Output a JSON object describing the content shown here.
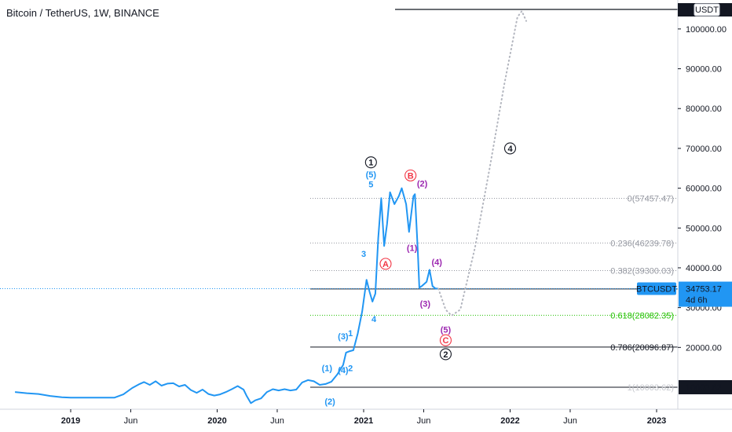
{
  "header": {
    "title": "Bitcoin / TetherUS, 1W, BINANCE"
  },
  "price_axis": {
    "unit_badge": "USDT",
    "ticks": [
      "100000.00",
      "90000.00",
      "80000.00",
      "70000.00",
      "60000.00",
      "50000.00",
      "40000.00",
      "30000.00",
      "20000.00"
    ],
    "top_label_partial": "10",
    "top_label_suffix": "2",
    "last_price": {
      "symbol": "BTCUSDT",
      "value": "34753.17",
      "countdown": "4d 6h"
    },
    "horizontal_line_label": "10003.62"
  },
  "time_axis": {
    "ticks": [
      "2019",
      "Jun",
      "2020",
      "Jun",
      "2021",
      "Jun",
      "2022",
      "Jun",
      "2023"
    ]
  },
  "fib_levels": [
    {
      "label": "0(57457.47)",
      "value": 57457.47,
      "color": "#9598a1"
    },
    {
      "label": "0.236(46239.78)",
      "value": 46239.78,
      "color": "#9598a1"
    },
    {
      "label": "0.382(39300.03)",
      "value": 39300.03,
      "color": "#9598a1"
    },
    {
      "label": "0.5",
      "value": 34678.75,
      "color": "#131722"
    },
    {
      "label": "0.618(28082.35)",
      "value": 28082.35,
      "color": "#22c000"
    },
    {
      "label": "0.786(20096.87)",
      "value": 20096.87,
      "color": "#131722"
    },
    {
      "label": "1(10003.62)",
      "value": 10003.62,
      "color": "#9598a1"
    }
  ],
  "wave_labels": [
    {
      "text": "1",
      "circled": true,
      "color": "#131722",
      "t": 2021.05,
      "v": 66500
    },
    {
      "text": "(5)",
      "circled": false,
      "color": "#2196f3",
      "t": 2021.05,
      "v": 63500
    },
    {
      "text": "5",
      "circled": false,
      "color": "#2196f3",
      "t": 2021.05,
      "v": 61000
    },
    {
      "text": "B",
      "circled": true,
      "color": "#f23645",
      "t": 2021.32,
      "v": 63200
    },
    {
      "text": "(2)",
      "circled": false,
      "color": "#9c27b0",
      "t": 2021.4,
      "v": 61200
    },
    {
      "text": "3",
      "circled": false,
      "color": "#2196f3",
      "t": 2021.0,
      "v": 43500
    },
    {
      "text": "A",
      "circled": true,
      "color": "#f23645",
      "t": 2021.15,
      "v": 41000
    },
    {
      "text": "(1)",
      "circled": false,
      "color": "#9c27b0",
      "t": 2021.33,
      "v": 45000
    },
    {
      "text": "(4)",
      "circled": false,
      "color": "#9c27b0",
      "t": 2021.5,
      "v": 41500
    },
    {
      "text": "(3)",
      "circled": false,
      "color": "#9c27b0",
      "t": 2021.42,
      "v": 31000
    },
    {
      "text": "4",
      "circled": false,
      "color": "#2196f3",
      "t": 2021.07,
      "v": 27200
    },
    {
      "text": "(5)",
      "circled": false,
      "color": "#9c27b0",
      "t": 2021.56,
      "v": 24500
    },
    {
      "text": "C",
      "circled": true,
      "color": "#f23645",
      "t": 2021.56,
      "v": 21800
    },
    {
      "text": "2",
      "circled": true,
      "color": "#131722",
      "t": 2021.56,
      "v": 18300
    },
    {
      "text": "(3)",
      "circled": false,
      "color": "#2196f3",
      "t": 2020.86,
      "v": 22800
    },
    {
      "text": "1",
      "circled": false,
      "color": "#2196f3",
      "t": 2020.91,
      "v": 23600
    },
    {
      "text": "(4)",
      "circled": false,
      "color": "#2196f3",
      "t": 2020.86,
      "v": 14300
    },
    {
      "text": "2",
      "circled": false,
      "color": "#2196f3",
      "t": 2020.91,
      "v": 14800
    },
    {
      "text": "(1)",
      "circled": false,
      "color": "#2196f3",
      "t": 2020.75,
      "v": 14800
    },
    {
      "text": "(2)",
      "circled": false,
      "color": "#2196f3",
      "t": 2020.77,
      "v": 6400
    },
    {
      "text": "4",
      "circled": true,
      "color": "#131722",
      "t": 2022.0,
      "v": 70000
    }
  ],
  "chart_data": {
    "type": "line",
    "symbol": "BTCUSDT",
    "timeframe": "1W",
    "exchange": "BINANCE",
    "ylim": [
      7400,
      109000
    ],
    "xlim": [
      2018.62,
      2023.2
    ],
    "series": [
      {
        "values": [
          [
            2018.62,
            8800
          ],
          [
            2018.7,
            8500
          ],
          [
            2018.78,
            8300
          ],
          [
            2018.86,
            7800
          ],
          [
            2018.94,
            7500
          ],
          [
            2019.0,
            7400
          ],
          [
            2019.2,
            7400
          ],
          [
            2019.3,
            7400
          ],
          [
            2019.36,
            8200
          ],
          [
            2019.42,
            9800
          ],
          [
            2019.47,
            10800
          ],
          [
            2019.5,
            11300
          ],
          [
            2019.54,
            10600
          ],
          [
            2019.58,
            11500
          ],
          [
            2019.62,
            10400
          ],
          [
            2019.66,
            10900
          ],
          [
            2019.7,
            11000
          ],
          [
            2019.74,
            10200
          ],
          [
            2019.78,
            10600
          ],
          [
            2019.82,
            9300
          ],
          [
            2019.86,
            8600
          ],
          [
            2019.9,
            9400
          ],
          [
            2019.94,
            8300
          ],
          [
            2019.98,
            7900
          ],
          [
            2020.02,
            8200
          ],
          [
            2020.06,
            8800
          ],
          [
            2020.1,
            9500
          ],
          [
            2020.14,
            10300
          ],
          [
            2020.18,
            9400
          ],
          [
            2020.2,
            7900
          ],
          [
            2020.23,
            6000
          ],
          [
            2020.26,
            6700
          ],
          [
            2020.3,
            7200
          ],
          [
            2020.34,
            8800
          ],
          [
            2020.38,
            9500
          ],
          [
            2020.42,
            9200
          ],
          [
            2020.46,
            9500
          ],
          [
            2020.5,
            9200
          ],
          [
            2020.54,
            9400
          ],
          [
            2020.58,
            11200
          ],
          [
            2020.62,
            11800
          ],
          [
            2020.66,
            11500
          ],
          [
            2020.7,
            10600
          ],
          [
            2020.74,
            10800
          ],
          [
            2020.78,
            11400
          ],
          [
            2020.82,
            13200
          ],
          [
            2020.86,
            15600
          ],
          [
            2020.88,
            18700
          ],
          [
            2020.9,
            19000
          ],
          [
            2020.93,
            19300
          ],
          [
            2020.96,
            23500
          ],
          [
            2020.99,
            29000
          ],
          [
            2021.02,
            37000
          ],
          [
            2021.04,
            34000
          ],
          [
            2021.06,
            31500
          ],
          [
            2021.08,
            33500
          ],
          [
            2021.1,
            47500
          ],
          [
            2021.12,
            57500
          ],
          [
            2021.14,
            45500
          ],
          [
            2021.16,
            51000
          ],
          [
            2021.18,
            59000
          ],
          [
            2021.21,
            56000
          ],
          [
            2021.24,
            58000
          ],
          [
            2021.26,
            60000
          ],
          [
            2021.29,
            56000
          ],
          [
            2021.31,
            49000
          ],
          [
            2021.34,
            58000
          ],
          [
            2021.35,
            58500
          ],
          [
            2021.37,
            44000
          ],
          [
            2021.38,
            35000
          ],
          [
            2021.4,
            35500
          ],
          [
            2021.43,
            36500
          ],
          [
            2021.45,
            39500
          ],
          [
            2021.47,
            35400
          ],
          [
            2021.49,
            34800
          ],
          [
            2021.51,
            34753.17
          ]
        ]
      },
      {
        "name": "projection",
        "style": "dotted",
        "values": [
          [
            2021.51,
            34753.17
          ],
          [
            2021.56,
            29500
          ],
          [
            2021.6,
            28000
          ],
          [
            2021.66,
            29500
          ],
          [
            2021.76,
            45000
          ],
          [
            2021.86,
            65000
          ],
          [
            2021.96,
            86000
          ],
          [
            2022.05,
            103000
          ],
          [
            2022.08,
            104500
          ],
          [
            2022.11,
            102000
          ]
        ]
      }
    ]
  }
}
